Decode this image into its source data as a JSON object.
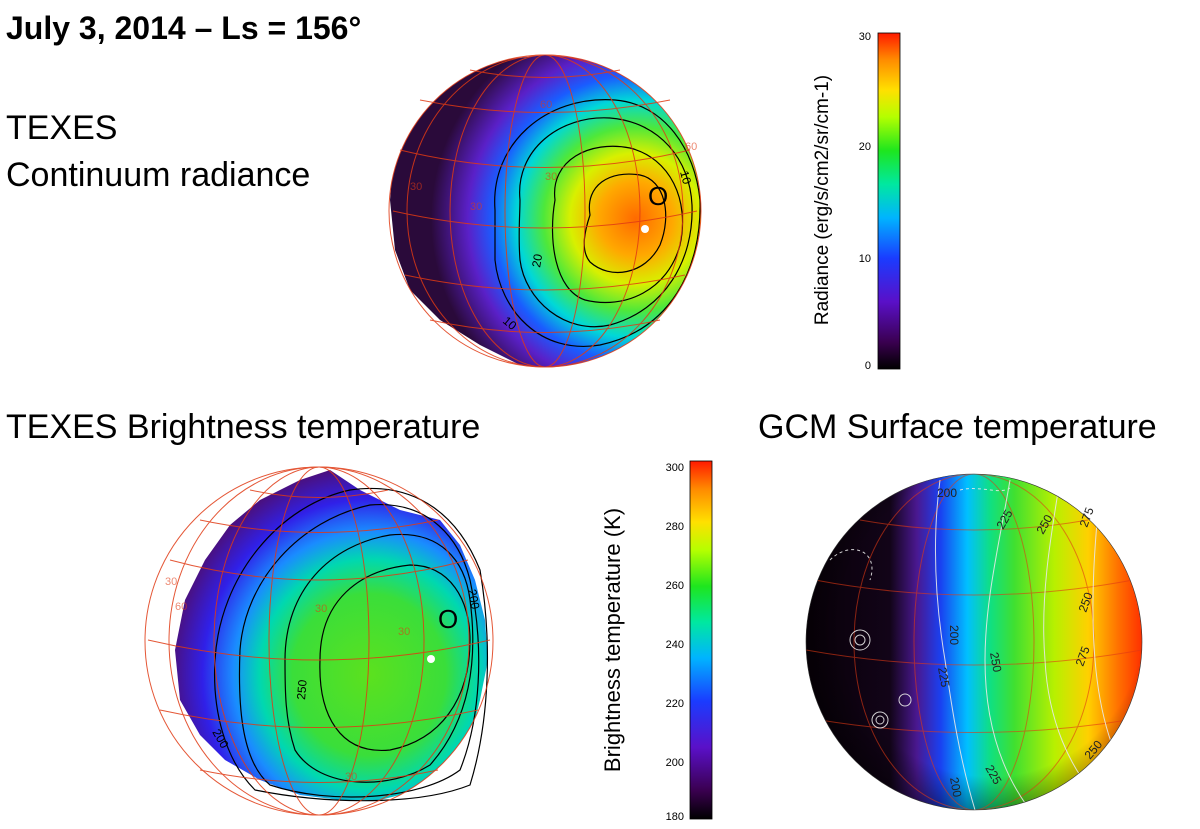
{
  "title": "July 3, 2014 – Ls = 156°",
  "panels": {
    "texes_radiance": {
      "label_line1": "TEXES",
      "label_line2": "Continuum radiance",
      "marker": "O",
      "contour_labels": [
        "10",
        "20",
        "10"
      ],
      "grid_labels": [
        "60",
        "30",
        "30",
        "30",
        "60"
      ],
      "colorbar": {
        "label": "Radiance (erg/s/cm2/sr/cm-1)",
        "ticks": [
          "0",
          "10",
          "20",
          "30"
        ],
        "min": 0,
        "max": 30
      }
    },
    "texes_brightness": {
      "label": "TEXES Brightness temperature",
      "marker": "O",
      "contour_labels": [
        "200",
        "250",
        "200",
        "30"
      ],
      "grid_labels": [
        "30",
        "60",
        "30",
        "30"
      ],
      "colorbar": {
        "label": "Brightness temperature (K)",
        "ticks": [
          "180",
          "200",
          "220",
          "240",
          "260",
          "280",
          "300"
        ],
        "min": 180,
        "max": 300
      }
    },
    "gcm_surface": {
      "label": "GCM Surface temperature",
      "contour_labels": [
        "200",
        "225",
        "250",
        "275",
        "200",
        "225",
        "250",
        "275",
        "250",
        "200",
        "225",
        "250"
      ]
    }
  },
  "colors": {
    "grid": "#e03a14",
    "marker_dot": "#ffffff",
    "contour": "#000000",
    "gcm_contour": "#e8e8e8"
  }
}
